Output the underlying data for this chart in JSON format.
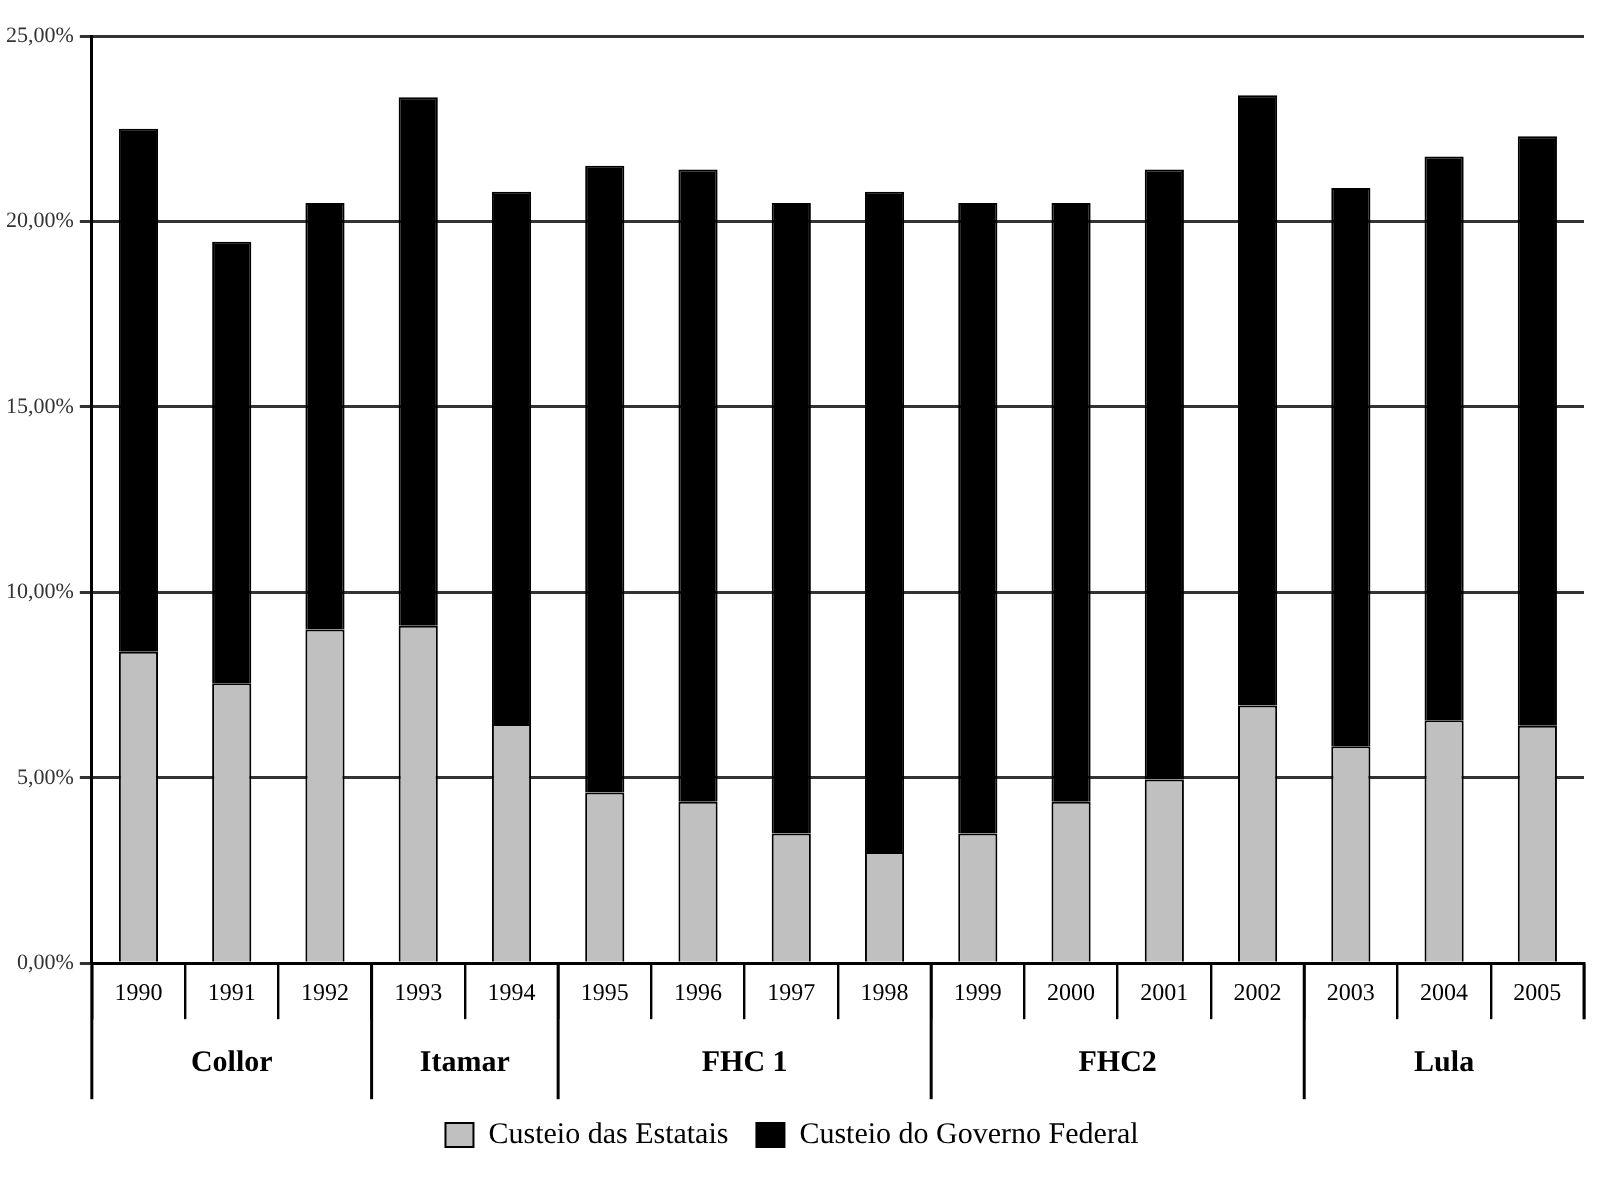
{
  "chart_data": {
    "type": "bar",
    "stacked": true,
    "categories": [
      "1990",
      "1991",
      "1992",
      "1993",
      "1994",
      "1995",
      "1996",
      "1997",
      "1998",
      "1999",
      "2000",
      "2001",
      "2002",
      "2003",
      "2004",
      "2005"
    ],
    "series": [
      {
        "name": "Custeio das Estatais",
        "color": "#c0c0c0",
        "values": [
          8.4,
          7.55,
          9.0,
          9.1,
          6.45,
          4.6,
          4.35,
          3.5,
          3.0,
          3.5,
          4.35,
          4.95,
          6.95,
          5.85,
          6.55,
          6.4
        ]
      },
      {
        "name": "Custeio do Governo Federal",
        "color": "#000000",
        "values": [
          14.1,
          11.9,
          11.5,
          14.25,
          14.35,
          16.9,
          17.05,
          17.0,
          17.8,
          17.0,
          16.15,
          16.45,
          16.45,
          15.05,
          15.2,
          15.9
        ]
      }
    ],
    "ylim": [
      0,
      25
    ],
    "yticks": [
      {
        "value": 0,
        "label": "0,00%"
      },
      {
        "value": 5,
        "label": "5,00%"
      },
      {
        "value": 10,
        "label": "10,00%"
      },
      {
        "value": 15,
        "label": "15,00%"
      },
      {
        "value": 20,
        "label": "20,00%"
      },
      {
        "value": 25,
        "label": "25,00%"
      }
    ],
    "grid": "y",
    "legend": "bottom",
    "annotations": [
      "Collor",
      "Itamar",
      "FHC 1",
      "FHC2",
      "Lula"
    ]
  }
}
